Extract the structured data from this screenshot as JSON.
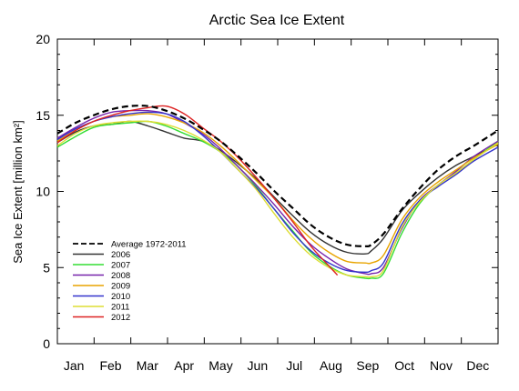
{
  "chart_data": {
    "type": "line",
    "title": "Arctic Sea Ice Extent",
    "xlabel": "",
    "ylabel": "Sea Ice Extent [million km²]",
    "x_categories": [
      "Jan",
      "Feb",
      "Mar",
      "Apr",
      "May",
      "Jun",
      "Jul",
      "Aug",
      "Sep",
      "Oct",
      "Nov",
      "Dec"
    ],
    "ylim": [
      0,
      20
    ],
    "yticks": [
      "0",
      "5",
      "10",
      "15",
      "20"
    ],
    "grid": false,
    "legend_position": "bottom-left",
    "series": [
      {
        "name": "Average 1972-2011",
        "color": "#000000",
        "dash": true,
        "x": [
          0,
          15,
          30,
          45,
          60,
          75,
          90,
          105,
          120,
          135,
          150,
          165,
          180,
          195,
          210,
          225,
          240,
          255,
          260,
          270,
          285,
          300,
          315,
          330,
          345,
          365
        ],
        "y": [
          13.8,
          14.5,
          15.0,
          15.4,
          15.6,
          15.6,
          15.3,
          14.8,
          14.1,
          13.3,
          12.3,
          11.2,
          10.0,
          8.9,
          7.8,
          7.0,
          6.5,
          6.4,
          6.5,
          7.2,
          8.8,
          10.2,
          11.4,
          12.3,
          13.0,
          14.0
        ]
      },
      {
        "name": "2006",
        "color": "#333333",
        "dash": false,
        "x": [
          0,
          15,
          30,
          45,
          60,
          75,
          90,
          105,
          120,
          135,
          150,
          165,
          180,
          195,
          210,
          225,
          240,
          255,
          260,
          270,
          285,
          300,
          315,
          330,
          345,
          365
        ],
        "y": [
          13.2,
          13.9,
          14.3,
          14.4,
          14.6,
          14.3,
          13.9,
          13.5,
          13.3,
          12.7,
          11.8,
          10.8,
          9.6,
          8.4,
          7.3,
          6.5,
          6.0,
          5.9,
          6.1,
          6.9,
          8.7,
          9.9,
          10.9,
          11.7,
          12.3,
          13.1
        ]
      },
      {
        "name": "2007",
        "color": "#33dd33",
        "dash": false,
        "x": [
          0,
          15,
          30,
          45,
          60,
          75,
          90,
          105,
          120,
          135,
          150,
          165,
          180,
          195,
          210,
          225,
          240,
          255,
          260,
          270,
          285,
          300,
          315,
          330,
          345,
          365
        ],
        "y": [
          12.9,
          13.6,
          14.2,
          14.4,
          14.5,
          14.6,
          14.3,
          13.8,
          13.3,
          12.6,
          11.6,
          10.3,
          8.8,
          7.4,
          6.0,
          5.1,
          4.5,
          4.3,
          4.3,
          4.6,
          7.2,
          9.2,
          10.4,
          11.2,
          12.1,
          13.3
        ]
      },
      {
        "name": "2008",
        "color": "#7722aa",
        "dash": false,
        "x": [
          0,
          15,
          30,
          45,
          60,
          75,
          90,
          105,
          120,
          135,
          150,
          165,
          180,
          195,
          210,
          225,
          240,
          255,
          260,
          270,
          285,
          300,
          315,
          330,
          345,
          365
        ],
        "y": [
          13.5,
          14.2,
          14.8,
          15.2,
          15.3,
          15.3,
          15.1,
          14.5,
          13.8,
          12.8,
          11.6,
          10.4,
          9.1,
          7.7,
          6.5,
          5.6,
          4.9,
          4.6,
          4.6,
          5.0,
          7.5,
          9.4,
          10.4,
          11.3,
          12.3,
          13.3
        ]
      },
      {
        "name": "2009",
        "color": "#e8a400",
        "dash": false,
        "x": [
          0,
          15,
          30,
          45,
          60,
          75,
          90,
          105,
          120,
          135,
          150,
          165,
          180,
          195,
          210,
          225,
          240,
          255,
          260,
          270,
          285,
          300,
          315,
          330,
          345,
          365
        ],
        "y": [
          13.3,
          14.0,
          14.6,
          14.9,
          15.0,
          15.1,
          14.9,
          14.5,
          13.9,
          13.0,
          11.9,
          10.7,
          9.5,
          8.1,
          6.9,
          6.0,
          5.4,
          5.3,
          5.3,
          5.8,
          8.1,
          9.6,
          10.6,
          11.4,
          12.2,
          13.1
        ]
      },
      {
        "name": "2010",
        "color": "#3333cc",
        "dash": false,
        "x": [
          0,
          15,
          30,
          45,
          60,
          75,
          90,
          105,
          120,
          135,
          150,
          165,
          180,
          195,
          210,
          225,
          240,
          255,
          260,
          270,
          285,
          300,
          315,
          330,
          345,
          365
        ],
        "y": [
          13.4,
          14.1,
          14.6,
          14.9,
          15.1,
          15.2,
          15.1,
          14.6,
          13.7,
          12.6,
          11.4,
          10.2,
          8.8,
          7.3,
          6.1,
          5.3,
          4.8,
          4.7,
          4.8,
          5.3,
          7.8,
          9.4,
          10.3,
          11.1,
          12.0,
          12.9
        ]
      },
      {
        "name": "2011",
        "color": "#dddd33",
        "dash": false,
        "x": [
          0,
          15,
          30,
          45,
          60,
          75,
          90,
          105,
          120,
          135,
          150,
          165,
          180,
          195,
          210,
          225,
          240,
          255,
          260,
          270,
          285,
          300,
          315,
          330,
          345,
          365
        ],
        "y": [
          13.0,
          13.8,
          14.3,
          14.5,
          14.6,
          14.6,
          14.4,
          14.0,
          13.4,
          12.6,
          11.4,
          10.1,
          8.5,
          7.0,
          5.8,
          5.0,
          4.5,
          4.4,
          4.4,
          4.8,
          7.6,
          9.3,
          10.4,
          11.2,
          12.1,
          13.2
        ]
      },
      {
        "name": "2012",
        "color": "#dd2222",
        "dash": false,
        "x": [
          0,
          15,
          30,
          45,
          60,
          75,
          90,
          105,
          120,
          135,
          150,
          165,
          180,
          195,
          210,
          225,
          232
        ],
        "y": [
          13.2,
          14.0,
          14.6,
          15.0,
          15.3,
          15.5,
          15.6,
          15.1,
          14.2,
          13.3,
          12.2,
          10.9,
          9.5,
          8.0,
          6.4,
          5.1,
          4.5
        ]
      }
    ]
  }
}
